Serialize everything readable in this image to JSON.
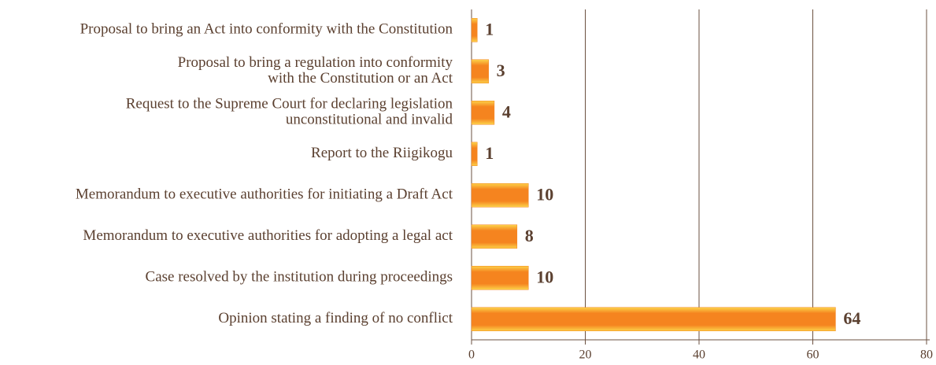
{
  "chart_data": {
    "type": "bar",
    "orientation": "horizontal",
    "categories": [
      [
        "Proposal to bring an Act into conformity with the Constitution"
      ],
      [
        "Proposal to bring a regulation into conformity",
        "with the Constitution or an Act"
      ],
      [
        "Request to the Supreme Court for declaring legislation",
        "unconstitutional and invalid"
      ],
      [
        "Report to the Riigikogu"
      ],
      [
        "Memorandum to executive authorities for initiating a Draft Act"
      ],
      [
        "Memorandum to executive authorities for adopting a legal act"
      ],
      [
        "Case resolved by the institution during proceedings"
      ],
      [
        "Opinion stating a finding of no conflict"
      ]
    ],
    "values": [
      1,
      3,
      4,
      1,
      10,
      8,
      10,
      64
    ],
    "color": "#f5841f",
    "xlim": [
      0,
      80
    ],
    "xticks": [
      0,
      20,
      40,
      60,
      80
    ],
    "grid": true
  }
}
